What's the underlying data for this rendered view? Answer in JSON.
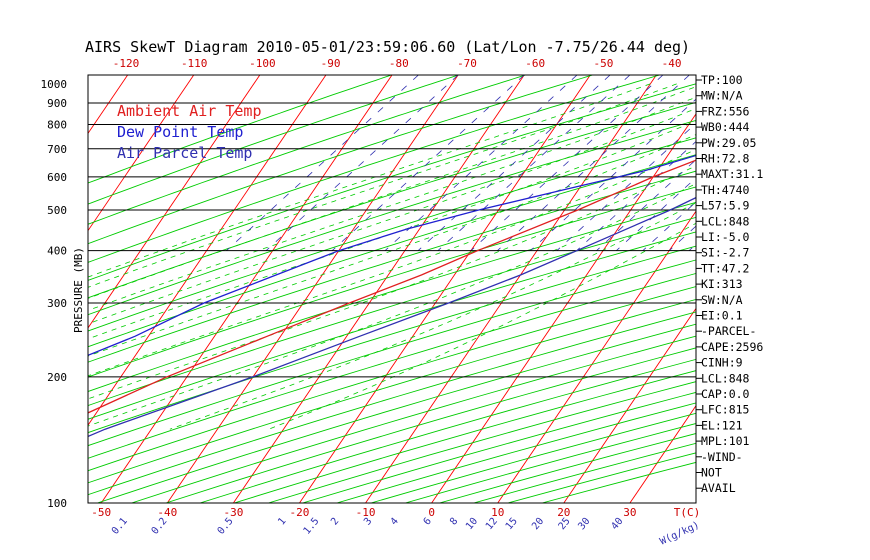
{
  "chart_data": {
    "type": "line",
    "title": "AIRS SkewT Diagram 2010-05-01/23:59:06.60 (Lat/Lon -7.75/26.44 deg)",
    "ylabel": "PRESSURE (MB)",
    "xlabel_bottom_temp": "T(C)",
    "xlabel_bottom_mix": "W(g/kg)",
    "y_scale": "log",
    "ylim": [
      1050,
      100
    ],
    "xlim": [
      -52,
      40
    ],
    "skew": 44,
    "pressure_ticks": [
      100,
      200,
      300,
      400,
      500,
      600,
      700,
      800,
      900,
      1000
    ],
    "isobars": [
      200,
      300,
      400,
      500,
      600,
      700,
      800,
      900
    ],
    "temp_ticks_bottom": [
      -50,
      -40,
      -30,
      -20,
      -10,
      0,
      10,
      20,
      30
    ],
    "temp_ticks_top": [
      -120,
      -110,
      -100,
      -90,
      -80,
      -70,
      -60,
      -50,
      -40
    ],
    "mixing_ratio_ticks": [
      {
        "label": "0.1",
        "t": -46
      },
      {
        "label": "0.2",
        "t": -40
      },
      {
        "label": "0.5",
        "t": -30
      },
      {
        "label": "1",
        "t": -22
      },
      {
        "label": "1.5",
        "t": -17
      },
      {
        "label": "2",
        "t": -14
      },
      {
        "label": "3",
        "t": -9
      },
      {
        "label": "4",
        "t": -5
      },
      {
        "label": "6",
        "t": 0
      },
      {
        "label": "8",
        "t": 4
      },
      {
        "label": "10",
        "t": 7
      },
      {
        "label": "12",
        "t": 10
      },
      {
        "label": "15",
        "t": 13
      },
      {
        "label": "20",
        "t": 17
      },
      {
        "label": "25",
        "t": 21
      },
      {
        "label": "30",
        "t": 24
      },
      {
        "label": "40",
        "t": 29
      }
    ],
    "legend": [
      {
        "name": "Ambient Air Temp",
        "color": "#e02020"
      },
      {
        "name": "Dew Point Temp",
        "color": "#2020d0"
      },
      {
        "name": "Air Parcel Temp",
        "color": "#3030b0"
      }
    ],
    "series": [
      {
        "name": "Ambient Air Temp",
        "color": "#e02020",
        "points": [
          [
            955,
            28
          ],
          [
            920,
            24
          ],
          [
            860,
            19
          ],
          [
            800,
            14
          ],
          [
            700,
            8
          ],
          [
            600,
            0
          ],
          [
            500,
            -8
          ],
          [
            400,
            -19
          ],
          [
            350,
            -25
          ],
          [
            300,
            -33
          ],
          [
            250,
            -42
          ],
          [
            200,
            -53
          ],
          [
            150,
            -65
          ],
          [
            130,
            -72
          ],
          [
            100,
            -72
          ]
        ]
      },
      {
        "name": "Dew Point Temp",
        "color": "#2020d0",
        "points": [
          [
            955,
            21
          ],
          [
            920,
            19
          ],
          [
            870,
            16
          ],
          [
            800,
            14
          ],
          [
            700,
            7
          ],
          [
            620,
            -2
          ],
          [
            560,
            -12
          ],
          [
            500,
            -23
          ],
          [
            450,
            -32
          ],
          [
            400,
            -40
          ],
          [
            350,
            -47
          ],
          [
            300,
            -55
          ],
          [
            250,
            -62
          ],
          [
            200,
            -73
          ],
          [
            150,
            -84
          ],
          [
            100,
            -90
          ]
        ]
      },
      {
        "name": "Air Parcel Temp",
        "color": "#3030b0",
        "points": [
          [
            955,
            28
          ],
          [
            848,
            22
          ],
          [
            800,
            21.5
          ],
          [
            700,
            18
          ],
          [
            600,
            13
          ],
          [
            500,
            6
          ],
          [
            400,
            -4
          ],
          [
            350,
            -10
          ],
          [
            300,
            -18
          ],
          [
            250,
            -28
          ],
          [
            200,
            -40
          ],
          [
            150,
            -57
          ],
          [
            121,
            -67
          ],
          [
            100,
            -84
          ]
        ]
      }
    ]
  },
  "indices": [
    "TP:100",
    "MW:N/A",
    "FRZ:556",
    "WB0:444",
    "PW:29.05",
    "RH:72.8",
    "MAXT:31.1",
    "TH:4740",
    "L57:5.9",
    "LCL:848",
    "LI:-5.0",
    "SI:-2.7",
    "TT:47.2",
    "KI:313",
    "SW:N/A",
    "EI:0.1",
    "-PARCEL-",
    "CAPE:2596",
    "CINH:9",
    "LCL:848",
    "CAP:0.0",
    "LFC:815",
    "EL:121",
    "MPL:101",
    "-WIND-",
    "NOT",
    "AVAIL"
  ],
  "colors": {
    "dry_adiabat": "#ff0000",
    "moist_adiabat": "#00cc00",
    "mixing_ratio": "#3030b0",
    "isobar": "#000000",
    "tick_label": "#cc0000"
  }
}
